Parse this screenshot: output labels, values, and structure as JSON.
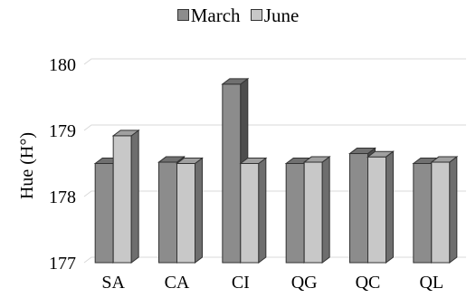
{
  "chart_data": {
    "type": "bar",
    "title": "",
    "xlabel": "",
    "ylabel": "Hue (H°)",
    "categories": [
      "SA",
      "CA",
      "CI",
      "QG",
      "QC",
      "QL"
    ],
    "series": [
      {
        "name": "March",
        "color": "#8c8c8c",
        "values": [
          178.5,
          178.52,
          179.7,
          178.5,
          178.65,
          178.5
        ]
      },
      {
        "name": "June",
        "color": "#c8c8c8",
        "values": [
          178.92,
          178.5,
          178.5,
          178.52,
          178.6,
          178.52
        ]
      }
    ],
    "ylim": [
      177,
      180
    ],
    "yticks": [
      "177",
      "178",
      "179",
      "180"
    ],
    "grid": true,
    "legend_position": "top-center",
    "bar_style": "3d"
  }
}
